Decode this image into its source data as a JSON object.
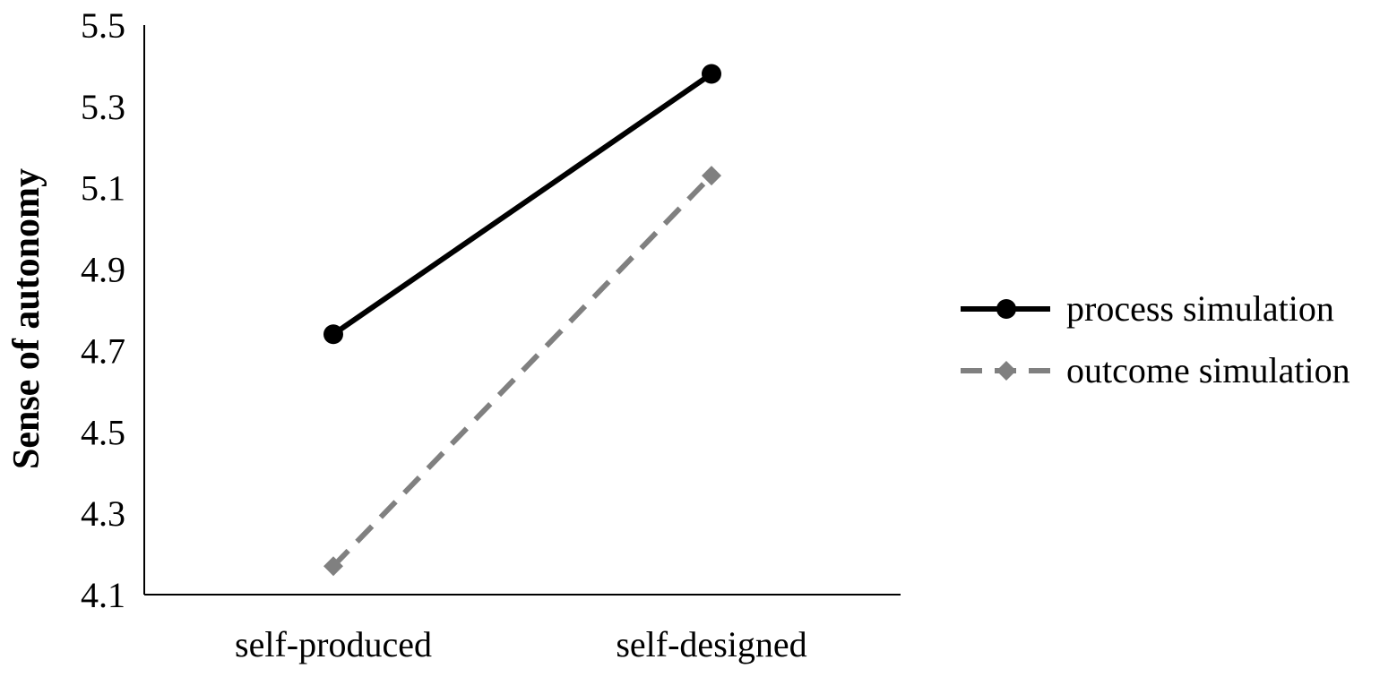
{
  "chart_data": {
    "type": "line",
    "title": "",
    "xlabel": "",
    "ylabel": "Sense of autonomy",
    "categories": [
      "self-produced",
      "self-designed"
    ],
    "ylim": [
      4.1,
      5.5
    ],
    "yticks": [
      "4.1",
      "4.3",
      "4.5",
      "4.7",
      "4.9",
      "5.1",
      "5.3",
      "5.5"
    ],
    "grid": false,
    "legend_position": "right",
    "series": [
      {
        "name": "process simulation",
        "values": [
          4.74,
          5.38
        ],
        "color": "#000000",
        "line_style": "solid",
        "marker": "circle"
      },
      {
        "name": "outcome simulation",
        "values": [
          4.17,
          5.13
        ],
        "color": "#808080",
        "line_style": "dashed",
        "marker": "diamond"
      }
    ]
  }
}
